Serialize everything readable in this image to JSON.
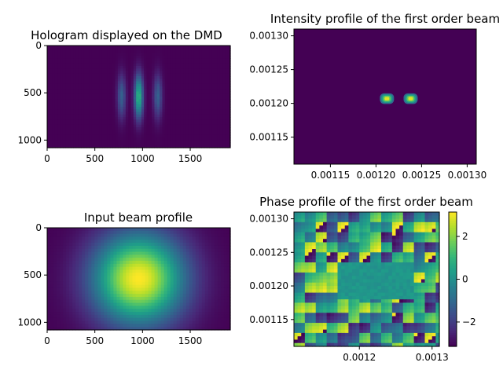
{
  "chart_data": [
    {
      "type": "heatmap",
      "title": "Hologram displayed on the DMD",
      "colormap": "viridis",
      "xlim": [
        0,
        1920
      ],
      "ylim": [
        1080,
        0
      ],
      "xticks": [
        "0",
        "500",
        "1000",
        "1500"
      ],
      "yticks": [
        "0",
        "500",
        "1000"
      ],
      "description_values": {
        "fringe_centers_x": [
          780,
          960,
          1160
        ],
        "center_y": 540,
        "max_intensity": 1.0
      }
    },
    {
      "type": "heatmap",
      "title": "Intensity profile of the first order beam",
      "colormap": "viridis",
      "xlim": [
        0.00111,
        0.00131
      ],
      "ylim": [
        0.00111,
        0.00131
      ],
      "xticks": [
        "0.00115",
        "0.00120",
        "0.00125",
        "0.00130"
      ],
      "yticks": [
        "0.00115",
        "0.00120",
        "0.00125",
        "0.00130"
      ],
      "spots": [
        {
          "x": 0.001212,
          "y": 0.001207
        },
        {
          "x": 0.001238,
          "y": 0.001207
        }
      ]
    },
    {
      "type": "heatmap",
      "title": "Input beam profile",
      "colormap": "viridis",
      "xlim": [
        0,
        1920
      ],
      "ylim": [
        1080,
        0
      ],
      "xticks": [
        "0",
        "500",
        "1000",
        "1500"
      ],
      "yticks": [
        "0",
        "500",
        "1000"
      ],
      "beam_center": {
        "x": 960,
        "y": 540
      }
    },
    {
      "type": "heatmap",
      "title": "Phase profile of the first order beam",
      "colormap": "viridis",
      "xlim": [
        0.00111,
        0.00131
      ],
      "ylim": [
        0.00111,
        0.00131
      ],
      "xticks": [
        "0.0012",
        "0.0013"
      ],
      "yticks": [
        "0.00115",
        "0.00120",
        "0.00125",
        "0.00130"
      ],
      "colorbar": {
        "min": -3.14,
        "max": 3.14,
        "ticks": [
          "2",
          "0",
          "−2"
        ]
      }
    }
  ]
}
